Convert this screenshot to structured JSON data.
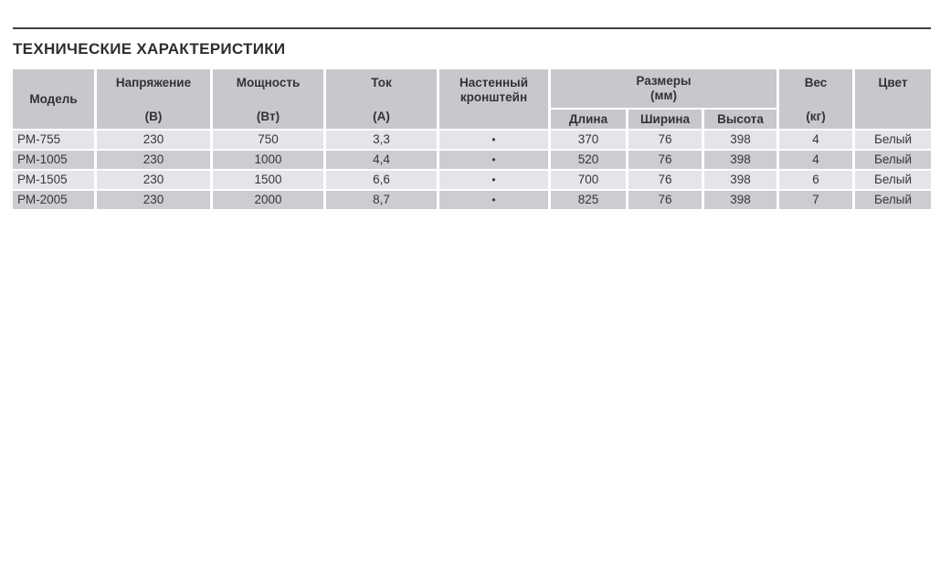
{
  "page": {
    "title": "ТЕХНИЧЕСКИЕ ХАРАКТЕРИСТИКИ"
  },
  "colors": {
    "header_bg": "#c8c7cc",
    "row_light_bg": "#e5e4e9",
    "row_dark_bg": "#cdccd1",
    "text": "#37363b",
    "rule": "#413f45"
  },
  "table": {
    "headers": {
      "model": "Модель",
      "voltage_label": "Напряжение",
      "voltage_unit": "(В)",
      "power_label": "Мощность",
      "power_unit": "(Вт)",
      "current_label": "Ток",
      "current_unit": "(А)",
      "bracket_line1": "Настенный",
      "bracket_line2": "кронштейн",
      "dimensions_label": "Размеры",
      "dimensions_unit": "(мм)",
      "length": "Длина",
      "width": "Ширина",
      "height": "Высота",
      "weight_label": "Вес",
      "weight_unit": "(кг)",
      "color": "Цвет"
    },
    "rows": [
      {
        "model": "РМ-755",
        "voltage": "230",
        "power": "750",
        "current": "3,3",
        "bracket": "•",
        "length": "370",
        "width": "76",
        "height": "398",
        "weight": "4",
        "color": "Белый"
      },
      {
        "model": "РМ-1005",
        "voltage": "230",
        "power": "1000",
        "current": "4,4",
        "bracket": "•",
        "length": "520",
        "width": "76",
        "height": "398",
        "weight": "4",
        "color": "Белый"
      },
      {
        "model": "РМ-1505",
        "voltage": "230",
        "power": "1500",
        "current": "6,6",
        "bracket": "•",
        "length": "700",
        "width": "76",
        "height": "398",
        "weight": "6",
        "color": "Белый"
      },
      {
        "model": "РМ-2005",
        "voltage": "230",
        "power": "2000",
        "current": "8,7",
        "bracket": "•",
        "length": "825",
        "width": "76",
        "height": "398",
        "weight": "7",
        "color": "Белый"
      }
    ]
  },
  "chart_data": {
    "type": "table",
    "title": "ТЕХНИЧЕСКИЕ ХАРАКТЕРИСТИКИ",
    "columns": [
      "Модель",
      "Напряжение (В)",
      "Мощность (Вт)",
      "Ток (А)",
      "Настенный кронштейн",
      "Размеры (мм): Длина",
      "Размеры (мм): Ширина",
      "Размеры (мм): Высота",
      "Вес (кг)",
      "Цвет"
    ],
    "rows": [
      [
        "РМ-755",
        230,
        750,
        "3,3",
        "•",
        370,
        76,
        398,
        4,
        "Белый"
      ],
      [
        "РМ-1005",
        230,
        1000,
        "4,4",
        "•",
        520,
        76,
        398,
        4,
        "Белый"
      ],
      [
        "РМ-1505",
        230,
        1500,
        "6,6",
        "•",
        700,
        76,
        398,
        6,
        "Белый"
      ],
      [
        "РМ-2005",
        230,
        2000,
        "8,7",
        "•",
        825,
        76,
        398,
        7,
        "Белый"
      ]
    ]
  }
}
